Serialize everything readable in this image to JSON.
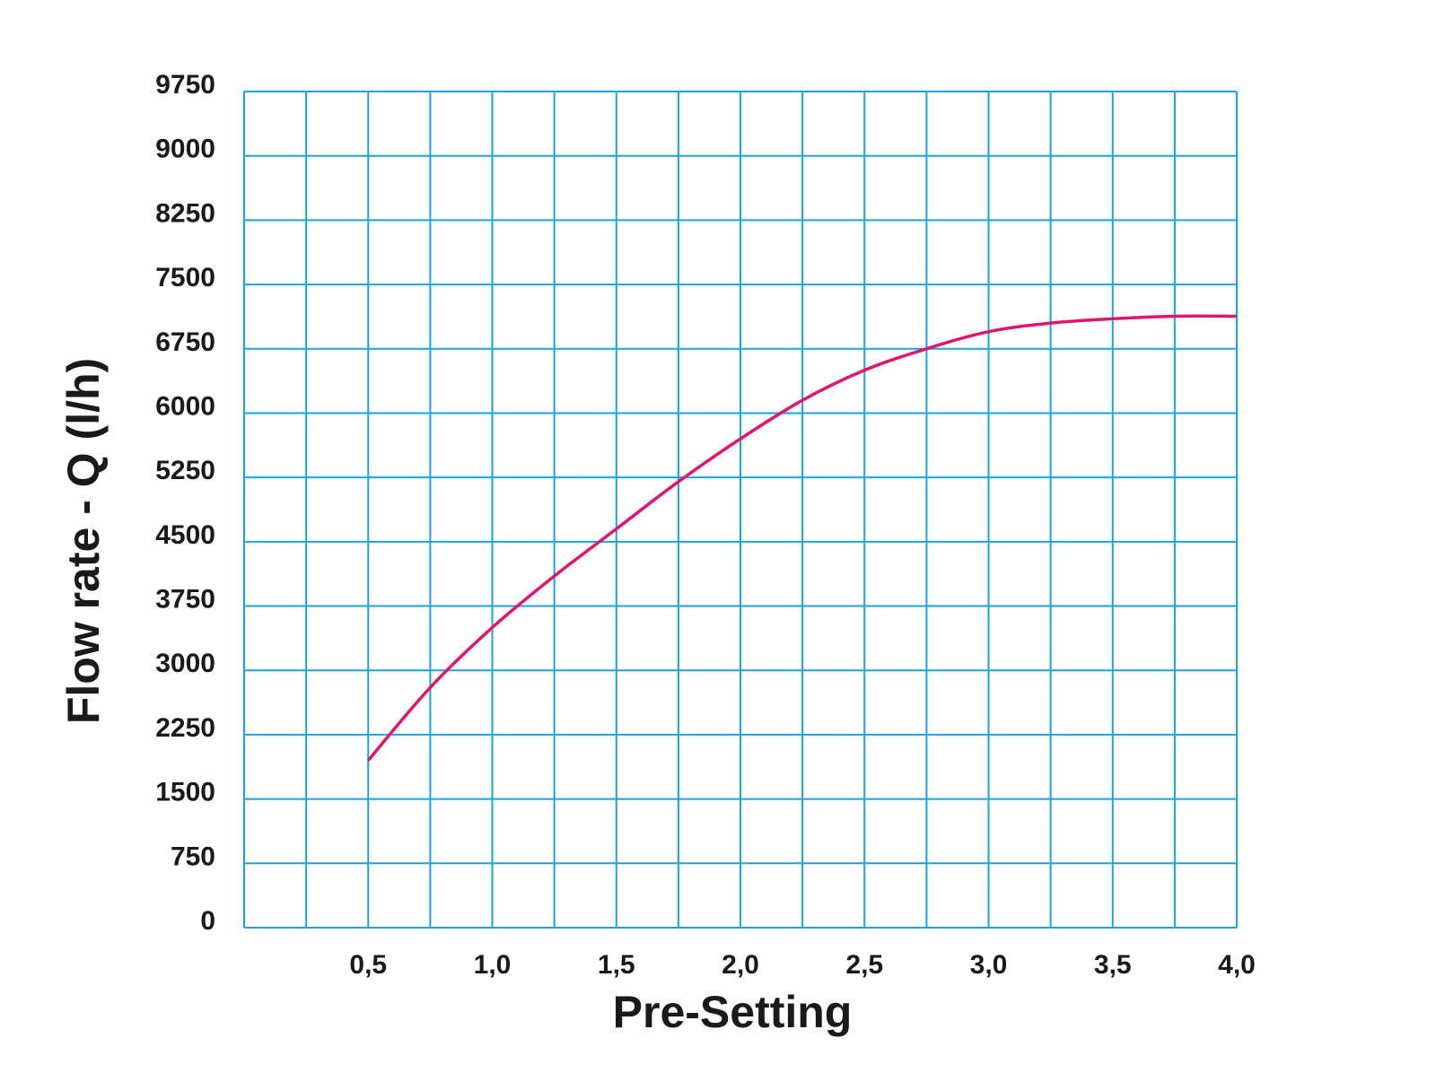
{
  "chart_data": {
    "type": "line",
    "xlabel": "Pre-Setting",
    "ylabel": "Flow rate - Q (l/h)",
    "xlim": [
      0,
      4.0
    ],
    "ylim": [
      0,
      9750
    ],
    "x_ticks": [
      "0,5",
      "1,0",
      "1,5",
      "2,0",
      "2,5",
      "3,0",
      "3,5",
      "4,0"
    ],
    "x_tick_values": [
      0.5,
      1.0,
      1.5,
      2.0,
      2.5,
      3.0,
      3.5,
      4.0
    ],
    "y_ticks": [
      "0",
      "750",
      "1500",
      "2250",
      "3000",
      "3750",
      "4500",
      "5250",
      "6000",
      "6750",
      "7500",
      "8250",
      "9000",
      "9750"
    ],
    "y_tick_values": [
      0,
      750,
      1500,
      2250,
      3000,
      3750,
      4500,
      5250,
      6000,
      6750,
      7500,
      8250,
      9000,
      9750
    ],
    "grid": true,
    "grid_color": "#1aa3e0",
    "series": [
      {
        "color": "#e0166e",
        "x": [
          0.5,
          0.75,
          1.0,
          1.25,
          1.5,
          1.75,
          2.0,
          2.25,
          2.5,
          2.75,
          3.0,
          3.25,
          3.5,
          3.75,
          4.0
        ],
        "y": [
          1950,
          2800,
          3500,
          4100,
          4650,
          5200,
          5700,
          6150,
          6500,
          6750,
          6950,
          7050,
          7100,
          7130,
          7130
        ]
      }
    ]
  }
}
